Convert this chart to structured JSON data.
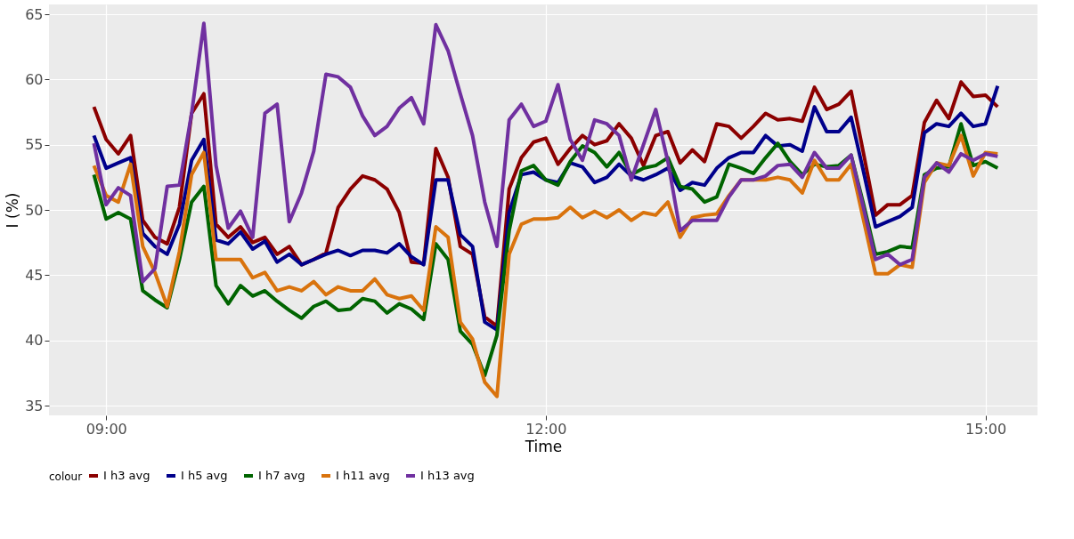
{
  "chart_data": {
    "type": "line",
    "xlabel": "Time",
    "ylabel": "I (%)",
    "legend_title": "colour",
    "legend": "bottom",
    "grid": true,
    "marker": "none",
    "line_style": "solid",
    "x": [
      8.9167,
      9,
      9.0833,
      9.1667,
      9.25,
      9.3333,
      9.4167,
      9.5,
      9.5833,
      9.6667,
      9.75,
      9.8333,
      9.9167,
      10,
      10.0833,
      10.1667,
      10.25,
      10.3333,
      10.4167,
      10.5,
      10.5833,
      10.6667,
      10.75,
      10.8333,
      10.9167,
      11,
      11.0833,
      11.1667,
      11.25,
      11.3333,
      11.4167,
      11.5,
      11.5833,
      11.6667,
      11.75,
      11.8333,
      11.9167,
      12,
      12.0833,
      12.1667,
      12.25,
      12.3333,
      12.4167,
      12.5,
      12.5833,
      12.6667,
      12.75,
      12.8333,
      12.9167,
      13,
      13.0833,
      13.1667,
      13.25,
      13.3333,
      13.4167,
      13.5,
      13.5833,
      13.6667,
      13.75,
      13.8333,
      13.9167,
      14,
      14.0833,
      14.1667,
      14.25,
      14.3333,
      14.4167,
      14.5,
      14.5833,
      14.6667,
      14.75,
      14.8333,
      14.9167,
      15,
      15.0833
    ],
    "xlim": [
      8.61,
      15.355
    ],
    "xticks": [
      {
        "value": 9,
        "label": "09:00"
      },
      {
        "value": 12,
        "label": "12:00"
      },
      {
        "value": 15,
        "label": "15:00"
      }
    ],
    "ylim": [
      34.25,
      65.75
    ],
    "yticks": [
      35,
      40,
      45,
      50,
      55,
      60,
      65
    ],
    "series": [
      {
        "name": "I h3 avg",
        "color": "#8b0000",
        "values": [
          57.9,
          55.4,
          54.3,
          55.7,
          49.2,
          47.9,
          47.4,
          50.2,
          57.4,
          58.9,
          48.9,
          47.9,
          48.7,
          47.5,
          47.9,
          46.6,
          47.2,
          45.8,
          46.2,
          46.7,
          50.2,
          51.6,
          52.6,
          52.3,
          51.6,
          49.8,
          46.0,
          45.9,
          54.7,
          52.5,
          47.2,
          46.6,
          41.8,
          41.1,
          51.6,
          54.0,
          55.2,
          55.5,
          53.5,
          54.7,
          55.7,
          55.0,
          55.3,
          56.6,
          55.5,
          53.4,
          55.7,
          56.0,
          53.6,
          54.6,
          53.7,
          56.6,
          56.4,
          55.5,
          56.4,
          57.4,
          56.9,
          57.0,
          56.8,
          59.4,
          57.7,
          58.1,
          59.1,
          54.4,
          49.6,
          50.4,
          50.4,
          51.1,
          56.7,
          58.4,
          57.0,
          59.8,
          58.7,
          58.8,
          57.9
        ]
      },
      {
        "name": "I h5 avg",
        "color": "#00008b",
        "values": [
          55.7,
          53.2,
          53.6,
          54.0,
          48.2,
          47.2,
          46.6,
          48.9,
          53.8,
          55.4,
          47.7,
          47.4,
          48.3,
          47.0,
          47.6,
          46.0,
          46.6,
          45.8,
          46.2,
          46.6,
          46.9,
          46.5,
          46.9,
          46.9,
          46.7,
          47.4,
          46.4,
          45.8,
          52.3,
          52.3,
          48.1,
          47.2,
          41.4,
          40.8,
          49.8,
          52.7,
          52.9,
          52.3,
          52.1,
          53.6,
          53.3,
          52.1,
          52.5,
          53.5,
          52.6,
          52.3,
          52.7,
          53.2,
          51.5,
          52.1,
          51.9,
          53.2,
          54.0,
          54.4,
          54.4,
          55.7,
          54.9,
          55.0,
          54.5,
          57.9,
          56.0,
          56.0,
          57.1,
          53.0,
          48.7,
          49.1,
          49.5,
          50.2,
          55.9,
          56.6,
          56.4,
          57.4,
          56.4,
          56.6,
          59.5
        ]
      },
      {
        "name": "I h7 avg",
        "color": "#006400",
        "values": [
          52.7,
          49.3,
          49.8,
          49.3,
          43.8,
          43.1,
          42.5,
          46.2,
          50.6,
          51.8,
          44.2,
          42.8,
          44.2,
          43.4,
          43.8,
          43.0,
          42.3,
          41.7,
          42.6,
          43.0,
          42.3,
          42.4,
          43.2,
          43.0,
          42.1,
          42.8,
          42.4,
          41.6,
          47.4,
          46.2,
          40.7,
          39.7,
          37.3,
          40.4,
          48.4,
          53.0,
          53.4,
          52.3,
          51.9,
          53.7,
          54.9,
          54.4,
          53.3,
          54.4,
          52.7,
          53.2,
          53.4,
          54.0,
          51.8,
          51.6,
          50.6,
          51.0,
          53.5,
          53.2,
          52.8,
          54.0,
          55.1,
          53.7,
          52.7,
          53.5,
          53.3,
          53.4,
          54.2,
          50.5,
          46.6,
          46.8,
          47.2,
          47.1,
          52.7,
          53.2,
          53.3,
          56.6,
          53.4,
          53.7,
          53.2
        ]
      },
      {
        "name": "I h11 avg",
        "color": "#d9730d",
        "values": [
          53.4,
          51.1,
          50.6,
          53.5,
          47.2,
          45.2,
          42.6,
          46.8,
          52.7,
          54.4,
          46.2,
          46.2,
          46.2,
          44.8,
          45.2,
          43.8,
          44.1,
          43.8,
          44.5,
          43.5,
          44.1,
          43.8,
          43.8,
          44.7,
          43.5,
          43.2,
          43.4,
          42.3,
          48.7,
          47.9,
          41.4,
          40.1,
          36.8,
          35.7,
          46.6,
          48.9,
          49.3,
          49.3,
          49.4,
          50.2,
          49.4,
          49.9,
          49.4,
          50.0,
          49.2,
          49.8,
          49.6,
          50.6,
          47.9,
          49.4,
          49.6,
          49.7,
          51.1,
          52.3,
          52.3,
          52.3,
          52.5,
          52.3,
          51.3,
          53.8,
          52.3,
          52.3,
          53.5,
          49.3,
          45.1,
          45.1,
          45.8,
          45.6,
          52.1,
          53.6,
          53.4,
          55.7,
          52.6,
          54.4,
          54.3
        ]
      },
      {
        "name": "I h13 avg",
        "color": "#7030a0",
        "values": [
          55.1,
          50.4,
          51.7,
          51.1,
          44.5,
          45.5,
          51.8,
          51.9,
          57.4,
          64.3,
          53.4,
          48.6,
          49.9,
          47.9,
          57.4,
          58.1,
          49.1,
          51.3,
          54.5,
          60.4,
          60.2,
          59.4,
          57.2,
          55.7,
          56.4,
          57.8,
          58.6,
          56.6,
          64.2,
          62.2,
          58.9,
          55.7,
          50.6,
          47.2,
          56.9,
          58.1,
          56.4,
          56.8,
          59.6,
          55.4,
          53.8,
          56.9,
          56.6,
          55.7,
          52.3,
          55.0,
          57.7,
          53.7,
          48.4,
          49.2,
          49.2,
          49.2,
          51.0,
          52.3,
          52.3,
          52.6,
          53.4,
          53.5,
          52.5,
          54.4,
          53.2,
          53.2,
          54.2,
          50.2,
          46.2,
          46.6,
          45.8,
          46.2,
          52.5,
          53.6,
          52.9,
          54.3,
          53.8,
          54.3,
          54.1
        ]
      }
    ]
  }
}
